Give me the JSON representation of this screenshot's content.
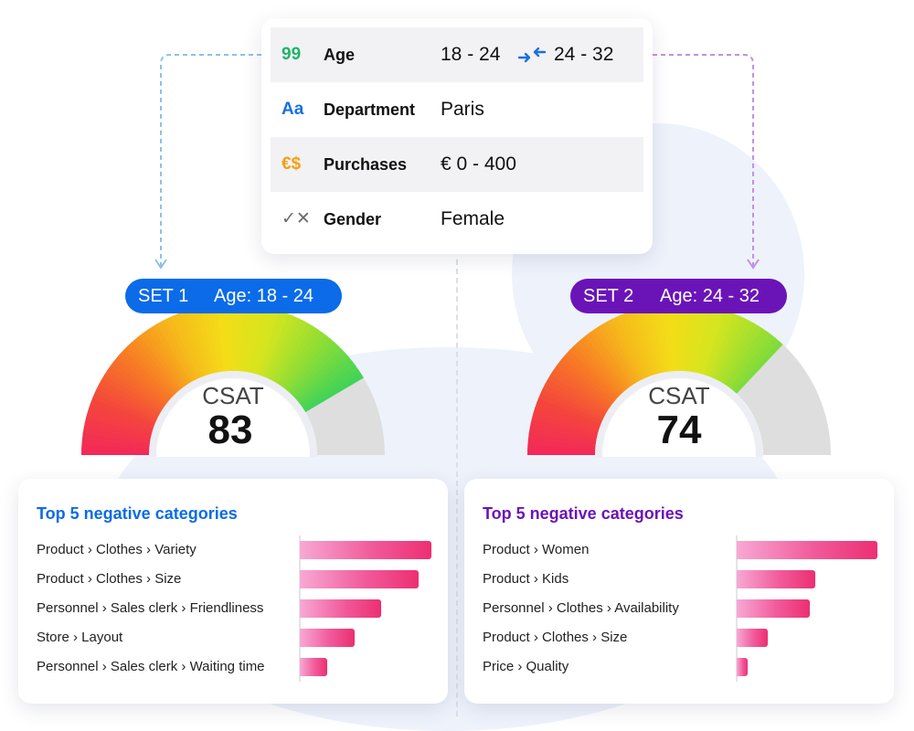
{
  "colors": {
    "set1": "#0b6be8",
    "set2": "#6a14b8",
    "age_icon": "#20b46b",
    "department_icon": "#1b6fe0",
    "purchases_icon": "#f3a012",
    "gender_icon": "#6b6b6b",
    "merge_icon": "#1b6fe0",
    "connector_left": "#8cc0ea",
    "connector_right": "#c48ee6",
    "gauge_empty": "#dedede"
  },
  "filters": {
    "rows": [
      {
        "icon": "99",
        "label": "Age",
        "value": "18 - 24",
        "value2": "24 - 32"
      },
      {
        "icon": "Aa",
        "label": "Department",
        "value": "Paris"
      },
      {
        "icon": "€$",
        "label": "Purchases",
        "value": "€ 0 - 400"
      },
      {
        "icon": "✓✕",
        "label": "Gender",
        "value": "Female"
      }
    ]
  },
  "sets": [
    {
      "tag": "SET 1",
      "age": "Age: 18 - 24"
    },
    {
      "tag": "SET 2",
      "age": "Age: 24 - 32"
    }
  ],
  "chart_data": [
    {
      "type": "gauge",
      "label": "CSAT",
      "value": 83,
      "range": [
        0,
        100
      ]
    },
    {
      "type": "gauge",
      "label": "CSAT",
      "value": 74,
      "range": [
        0,
        100
      ]
    },
    {
      "type": "bar",
      "orientation": "horizontal",
      "title": "Top 5 negative categories",
      "categories": [
        "Product › Clothes › Variety",
        "Product › Clothes › Size",
        "Personnel › Sales clerk › Friendliness",
        "Store › Layout",
        "Personnel › Sales clerk › Waiting time"
      ],
      "values": [
        100,
        90,
        62,
        42,
        21
      ]
    },
    {
      "type": "bar",
      "orientation": "horizontal",
      "title": "Top 5 negative categories",
      "categories": [
        "Product › Women",
        "Product › Kids",
        "Personnel › Clothes › Availability",
        "Product › Clothes › Size",
        "Price › Quality"
      ],
      "values": [
        100,
        56,
        52,
        22,
        8
      ]
    }
  ]
}
